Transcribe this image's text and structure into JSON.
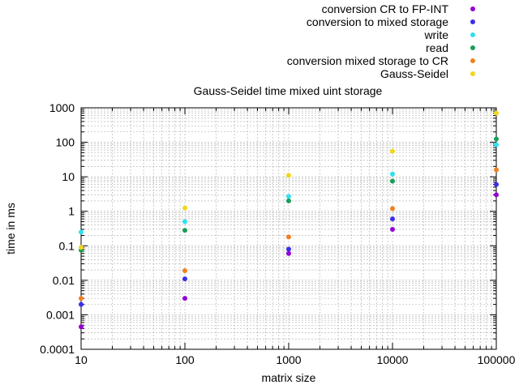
{
  "chart_data": {
    "type": "scatter",
    "title": "Gauss-Seidel time mixed uint storage",
    "xlabel": "matrix size",
    "ylabel": "time in ms",
    "xscale": "log",
    "yscale": "log",
    "xlim": [
      10,
      100000
    ],
    "ylim": [
      0.0001,
      1000
    ],
    "xticks": [
      {
        "value": 10,
        "label": "10"
      },
      {
        "value": 100,
        "label": "100"
      },
      {
        "value": 1000,
        "label": "1000"
      },
      {
        "value": 10000,
        "label": "10000"
      },
      {
        "value": 100000,
        "label": "100000"
      }
    ],
    "yticks": [
      {
        "value": 0.0001,
        "label": "0.0001"
      },
      {
        "value": 0.001,
        "label": "0.001"
      },
      {
        "value": 0.01,
        "label": "0.01"
      },
      {
        "value": 0.1,
        "label": "0.1"
      },
      {
        "value": 1,
        "label": "1"
      },
      {
        "value": 10,
        "label": "10"
      },
      {
        "value": 100,
        "label": "100"
      },
      {
        "value": 1000,
        "label": "1000"
      }
    ],
    "grid": true,
    "legend_position": "top-right",
    "x": [
      10,
      100,
      1000,
      10000,
      100000
    ],
    "series": [
      {
        "name": "conversion CR to FP-INT",
        "color": "#9400d3",
        "values": [
          0.00045,
          0.003,
          0.06,
          0.3,
          3
        ]
      },
      {
        "name": "conversion to mixed storage",
        "color": "#3a2fe8",
        "values": [
          0.002,
          0.011,
          0.08,
          0.6,
          6
        ]
      },
      {
        "name": "write",
        "color": "#2fe0f0",
        "values": [
          0.25,
          0.5,
          2.7,
          12,
          85
        ]
      },
      {
        "name": "read",
        "color": "#1a9e55",
        "values": [
          0.075,
          0.28,
          2.0,
          7.5,
          125
        ]
      },
      {
        "name": "conversion mixed storage to CR",
        "color": "#f08020",
        "values": [
          0.003,
          0.019,
          0.18,
          1.2,
          16
        ]
      },
      {
        "name": "Gauss-Seidel",
        "color": "#f2d61a",
        "values": [
          0.09,
          1.25,
          11,
          55,
          700
        ]
      }
    ]
  }
}
